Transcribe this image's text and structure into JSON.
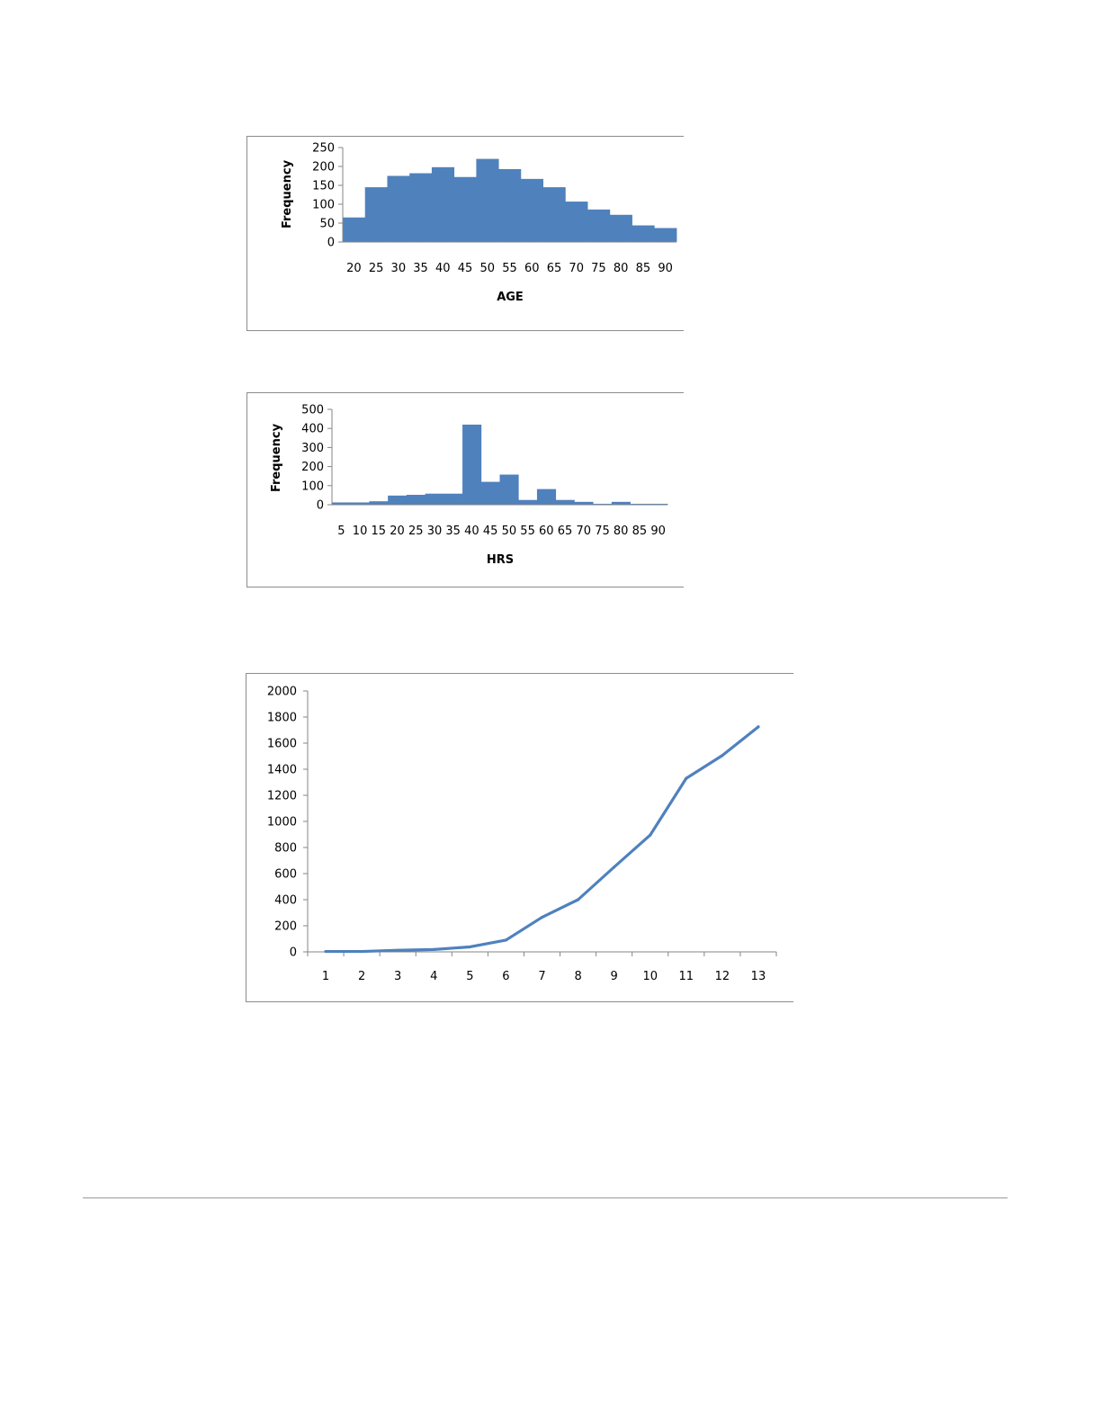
{
  "chart_data": [
    {
      "type": "bar",
      "xlabel": "AGE",
      "ylabel": "Frequency",
      "ylim": [
        0,
        250
      ],
      "yticks": [
        "0",
        "50",
        "100",
        "150",
        "200",
        "250"
      ],
      "categories": [
        "20",
        "25",
        "30",
        "35",
        "40",
        "45",
        "50",
        "55",
        "60",
        "65",
        "70",
        "75",
        "80",
        "85",
        "90"
      ],
      "values": [
        65,
        145,
        175,
        182,
        198,
        172,
        220,
        193,
        167,
        145,
        107,
        86,
        72,
        44,
        37
      ],
      "grid": false,
      "legend": "none",
      "color": "#4f81bd"
    },
    {
      "type": "bar",
      "xlabel": "HRS",
      "ylabel": "Frequency",
      "ylim": [
        0,
        500
      ],
      "yticks": [
        "0",
        "100",
        "200",
        "300",
        "400",
        "500"
      ],
      "categories": [
        "5",
        "10",
        "15",
        "20",
        "25",
        "30",
        "35",
        "40",
        "45",
        "50",
        "55",
        "60",
        "65",
        "70",
        "75",
        "80",
        "85",
        "90"
      ],
      "values": [
        12,
        12,
        18,
        48,
        52,
        58,
        58,
        420,
        120,
        158,
        25,
        82,
        25,
        15,
        5,
        15,
        5,
        5
      ],
      "grid": false,
      "legend": "none",
      "color": "#4f81bd"
    },
    {
      "type": "line",
      "xlabel": "",
      "ylabel": "",
      "ylim": [
        0,
        2000
      ],
      "yticks": [
        "0",
        "200",
        "400",
        "600",
        "800",
        "1000",
        "1200",
        "1400",
        "1600",
        "1800",
        "2000"
      ],
      "categories": [
        "1",
        "2",
        "3",
        "4",
        "5",
        "6",
        "7",
        "8",
        "9",
        "10",
        "11",
        "12",
        "13"
      ],
      "values": [
        3,
        3,
        12,
        18,
        38,
        90,
        265,
        400,
        650,
        895,
        1330,
        1505,
        1725
      ],
      "grid": false,
      "legend": "none",
      "color": "#4f81bd"
    }
  ]
}
